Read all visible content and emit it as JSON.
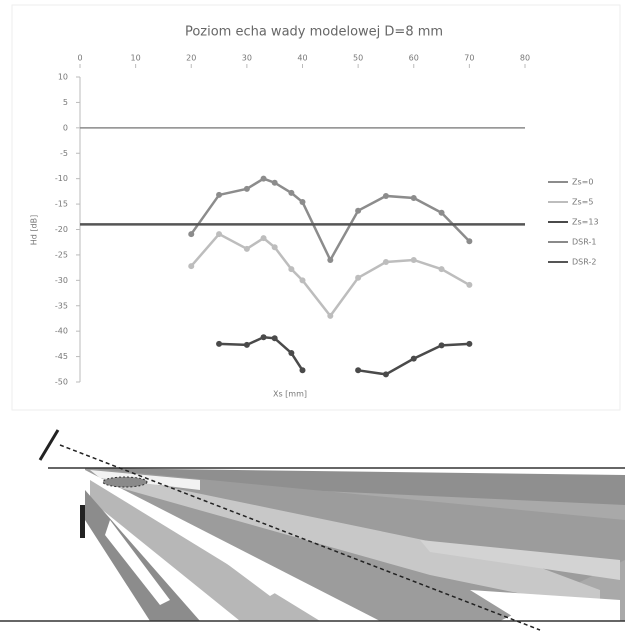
{
  "chart_data": {
    "type": "line",
    "title": "Poziom echa wady modelowej D=8 mm",
    "x_label": "Xs [mm]",
    "y_label": "Hd [dB]",
    "x": [
      20,
      25,
      30,
      33,
      35,
      38,
      40,
      45,
      50,
      55,
      60,
      65,
      70
    ],
    "xlim": [
      0,
      80
    ],
    "xticks": [
      0,
      10,
      20,
      30,
      40,
      50,
      60,
      70,
      80
    ],
    "ylim": [
      -50,
      10
    ],
    "yticks": [
      10,
      5,
      0,
      -5,
      -10,
      -15,
      -20,
      -25,
      -30,
      -35,
      -40,
      -45,
      -50
    ],
    "series": [
      {
        "name": "Zs=0",
        "color": "#8c8c8c",
        "values": [
          -20.9,
          -13.2,
          -12,
          -10,
          -10.8,
          -12.8,
          -14.6,
          -26,
          -16.3,
          -13.4,
          -13.8,
          -16.7,
          -22.3
        ]
      },
      {
        "name": "Zs=5",
        "color": "#bdbdbd",
        "values": [
          -27.2,
          -20.9,
          -23.8,
          -21.7,
          -23.5,
          -27.8,
          -30,
          -37,
          -29.5,
          -26.4,
          -26,
          -27.8,
          -30.9
        ]
      },
      {
        "name": "Zs=13",
        "color": "#4a4a4a",
        "values": [
          null,
          -42.5,
          -42.7,
          -41.2,
          -41.4,
          -44.3,
          -47.7,
          null,
          -47.7,
          -48.5,
          -45.4,
          -42.8,
          -42.5
        ]
      }
    ],
    "reference_lines": [
      {
        "name": "DSR-1",
        "color": "#8a8a8a",
        "value": 0
      },
      {
        "name": "DSR-2",
        "color": "#555555",
        "value": -19
      }
    ]
  }
}
